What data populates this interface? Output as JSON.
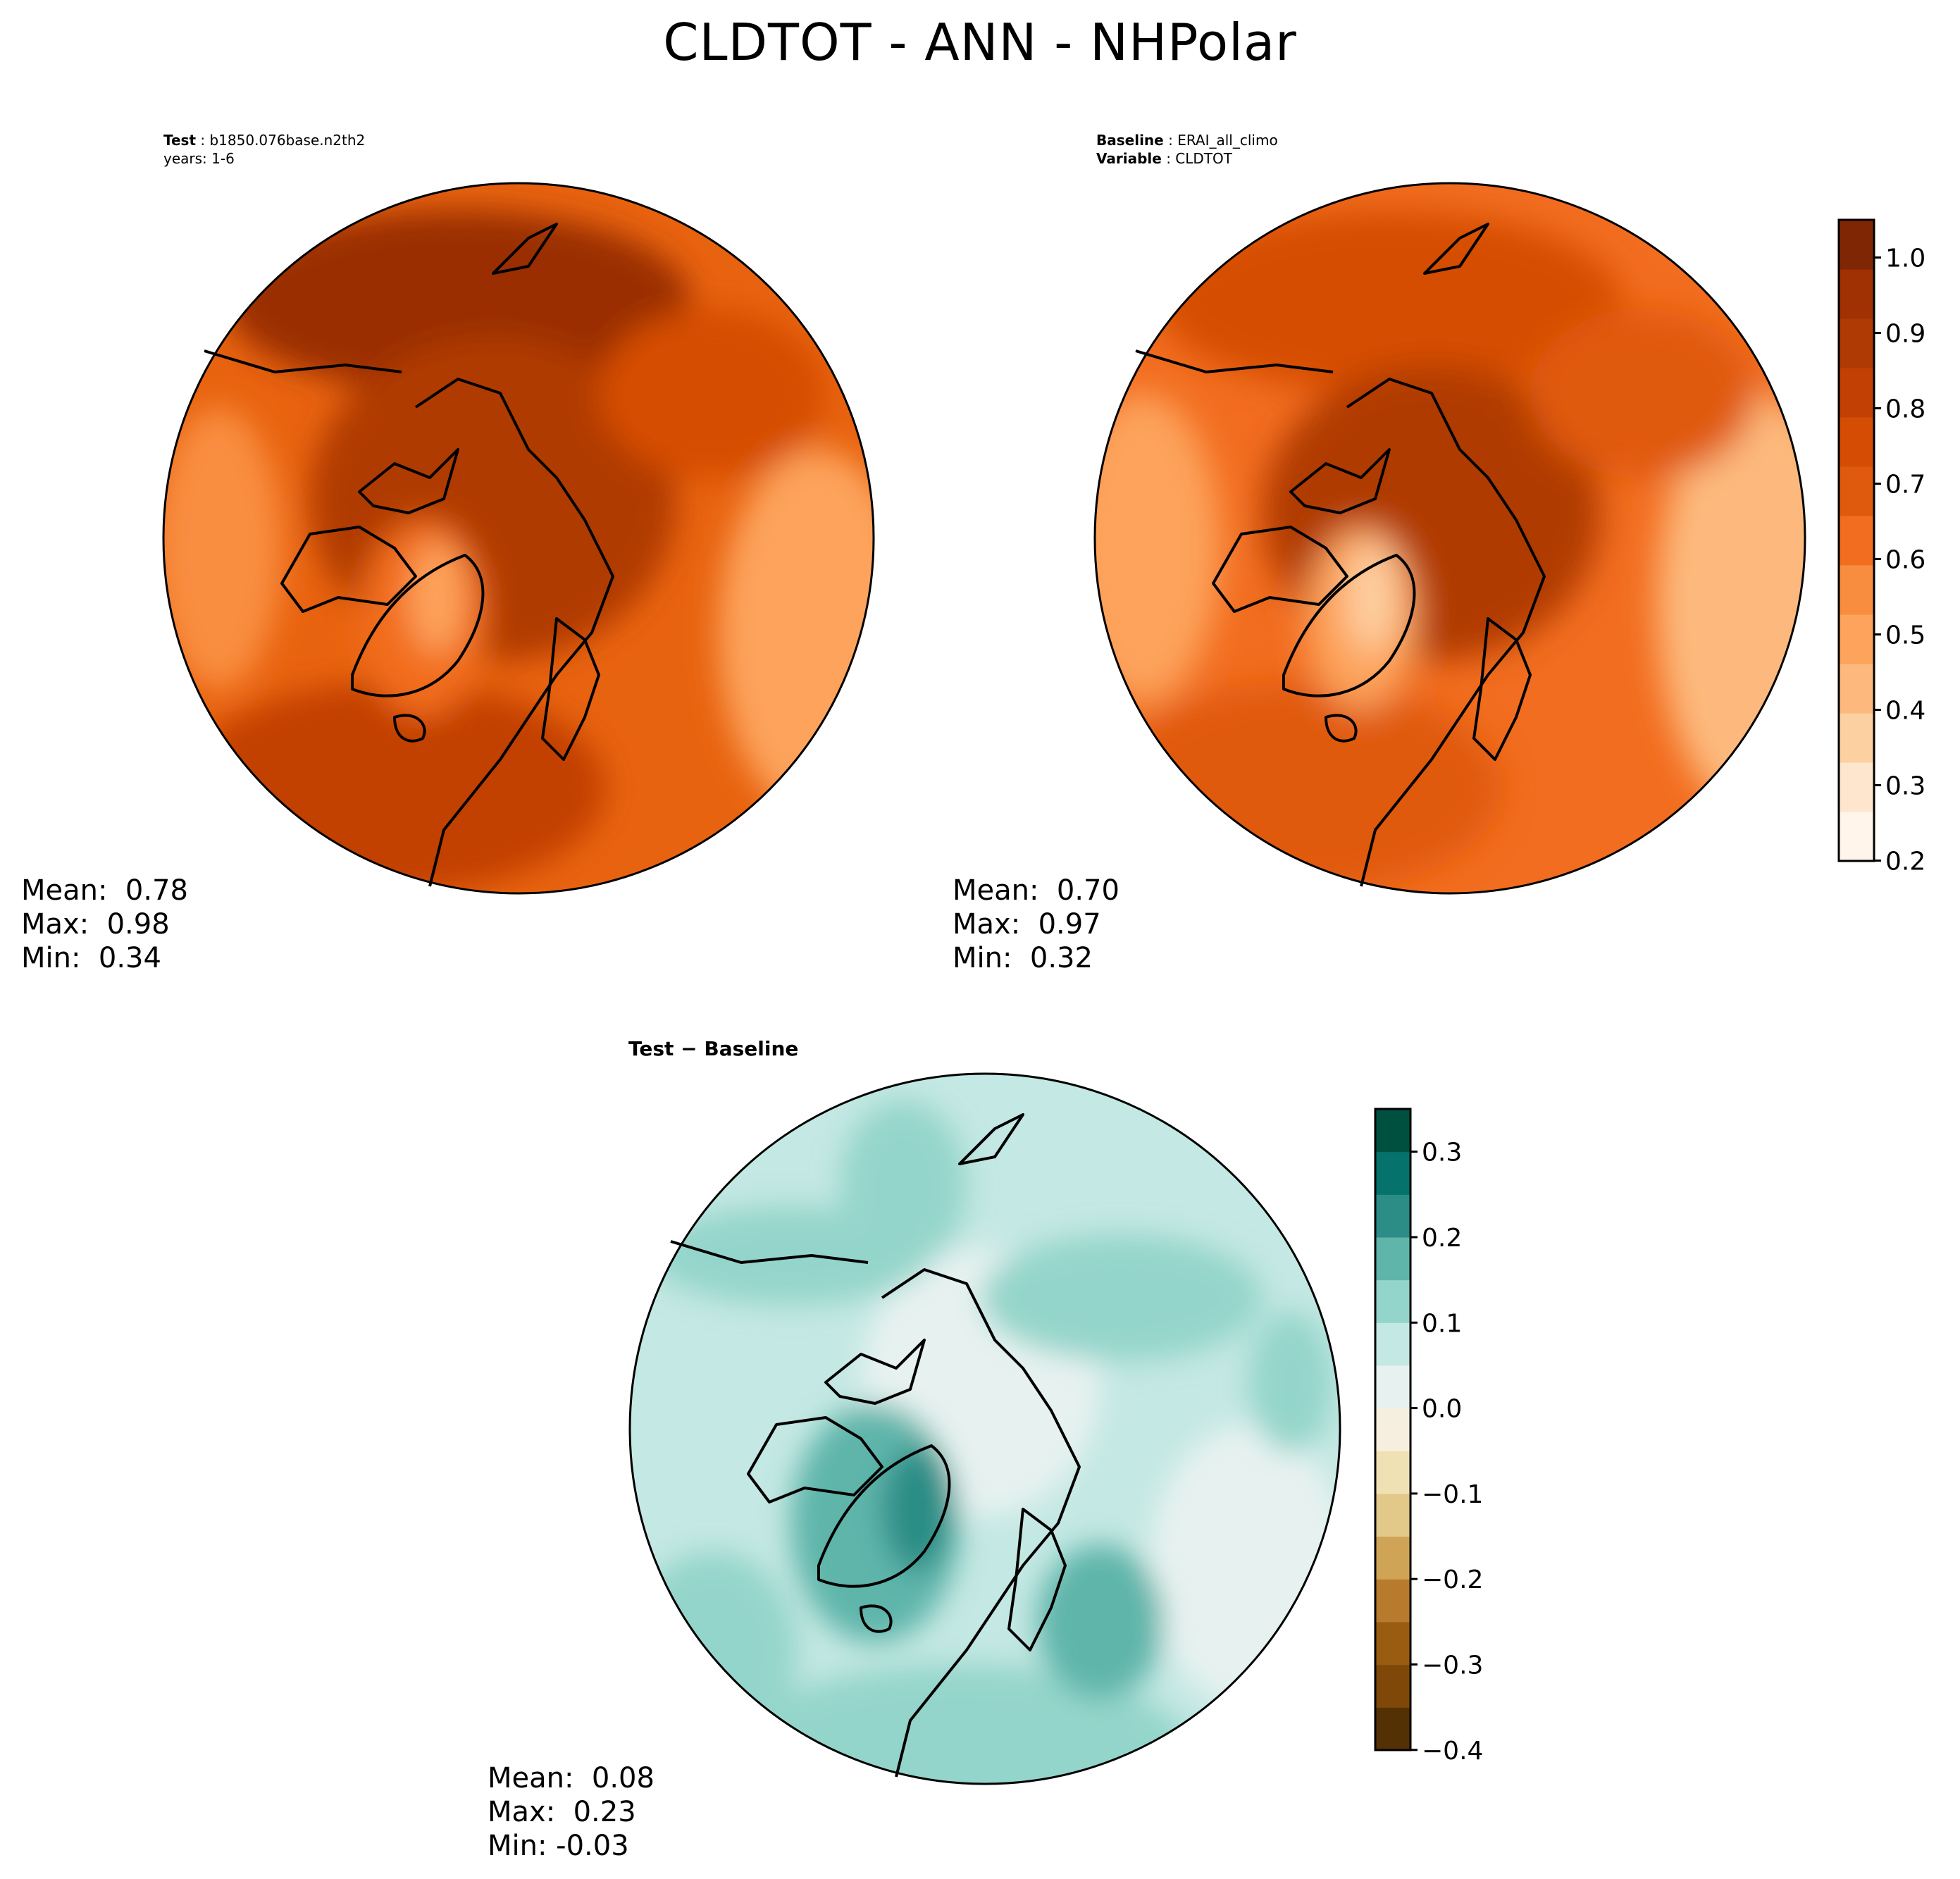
{
  "title": "CLDTOT - ANN - NHPolar",
  "panels": {
    "test": {
      "label": "Test",
      "case": "b1850.076base.n2th2",
      "years": "years: 1-6",
      "stats": {
        "mean": "Mean:  0.78",
        "max": "Max:  0.98",
        "min": "Min:  0.34"
      }
    },
    "baseline": {
      "label": "Baseline",
      "case": "ERAI_all_climo",
      "variable_label": "Variable",
      "variable": "CLDTOT",
      "stats": {
        "mean": "Mean:  0.70",
        "max": "Max:  0.97",
        "min": "Min:  0.32"
      }
    },
    "diff": {
      "title": "Test − Baseline",
      "stats": {
        "mean": "Mean:  0.08",
        "max": "Max:  0.23",
        "min": "Min: -0.03"
      }
    }
  },
  "colorbars": {
    "main": {
      "ticks": [
        "1.0",
        "0.9",
        "0.8",
        "0.7",
        "0.6",
        "0.5",
        "0.4",
        "0.3",
        "0.2"
      ],
      "colors": [
        "#fff5eb",
        "#fee6ce",
        "#fdd0a2",
        "#fdb97d",
        "#fda35c",
        "#f98d3f",
        "#f26d1f",
        "#e05a0d",
        "#d54d05",
        "#c24003",
        "#b03a03",
        "#a03103",
        "#7f2704"
      ]
    },
    "diff": {
      "ticks": [
        "0.3",
        "0.2",
        "0.1",
        "0.0",
        "−0.1",
        "−0.2",
        "−0.3",
        "−0.4"
      ],
      "colors": [
        "#543005",
        "#7f4809",
        "#9a5c10",
        "#b87a2c",
        "#d0a456",
        "#e2c889",
        "#f0e1b5",
        "#f6efdf",
        "#e7f2f0",
        "#c4e8e3",
        "#94d5cb",
        "#5fb5aa",
        "#2b8d86",
        "#05726b",
        "#00503f"
      ]
    }
  }
}
